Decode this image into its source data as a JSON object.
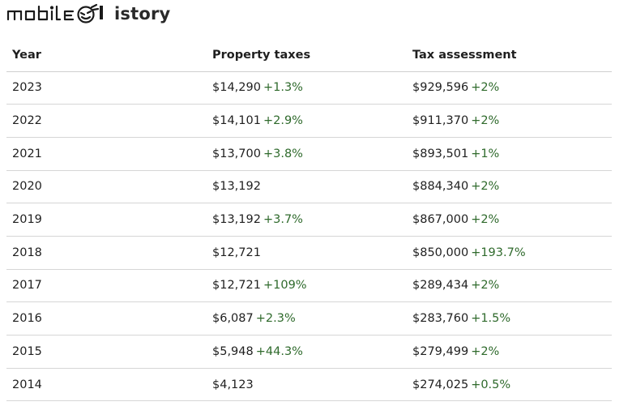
{
  "header": {
    "logo_text": "mobile",
    "title": "istory"
  },
  "table": {
    "columns": [
      "Year",
      "Property taxes",
      "Tax assessment"
    ],
    "rows": [
      {
        "year": "2023",
        "tax": "$14,290",
        "tax_change": "+1.3%",
        "assessment": "$929,596",
        "assessment_change": "+2%"
      },
      {
        "year": "2022",
        "tax": "$14,101",
        "tax_change": "+2.9%",
        "assessment": "$911,370",
        "assessment_change": "+2%"
      },
      {
        "year": "2021",
        "tax": "$13,700",
        "tax_change": "+3.8%",
        "assessment": "$893,501",
        "assessment_change": "+1%"
      },
      {
        "year": "2020",
        "tax": "$13,192",
        "tax_change": "",
        "assessment": "$884,340",
        "assessment_change": "+2%"
      },
      {
        "year": "2019",
        "tax": "$13,192",
        "tax_change": "+3.7%",
        "assessment": "$867,000",
        "assessment_change": "+2%"
      },
      {
        "year": "2018",
        "tax": "$12,721",
        "tax_change": "",
        "assessment": "$850,000",
        "assessment_change": "+193.7%"
      },
      {
        "year": "2017",
        "tax": "$12,721",
        "tax_change": "+109%",
        "assessment": "$289,434",
        "assessment_change": "+2%"
      },
      {
        "year": "2016",
        "tax": "$6,087",
        "tax_change": "+2.3%",
        "assessment": "$283,760",
        "assessment_change": "+1.5%"
      },
      {
        "year": "2015",
        "tax": "$5,948",
        "tax_change": "+44.3%",
        "assessment": "$279,499",
        "assessment_change": "+2%"
      },
      {
        "year": "2014",
        "tax": "$4,123",
        "tax_change": "",
        "assessment": "$274,025",
        "assessment_change": "+0.5%"
      }
    ]
  },
  "colors": {
    "change_positive": "#2f6a2c",
    "divider": "#d6d6d6"
  }
}
